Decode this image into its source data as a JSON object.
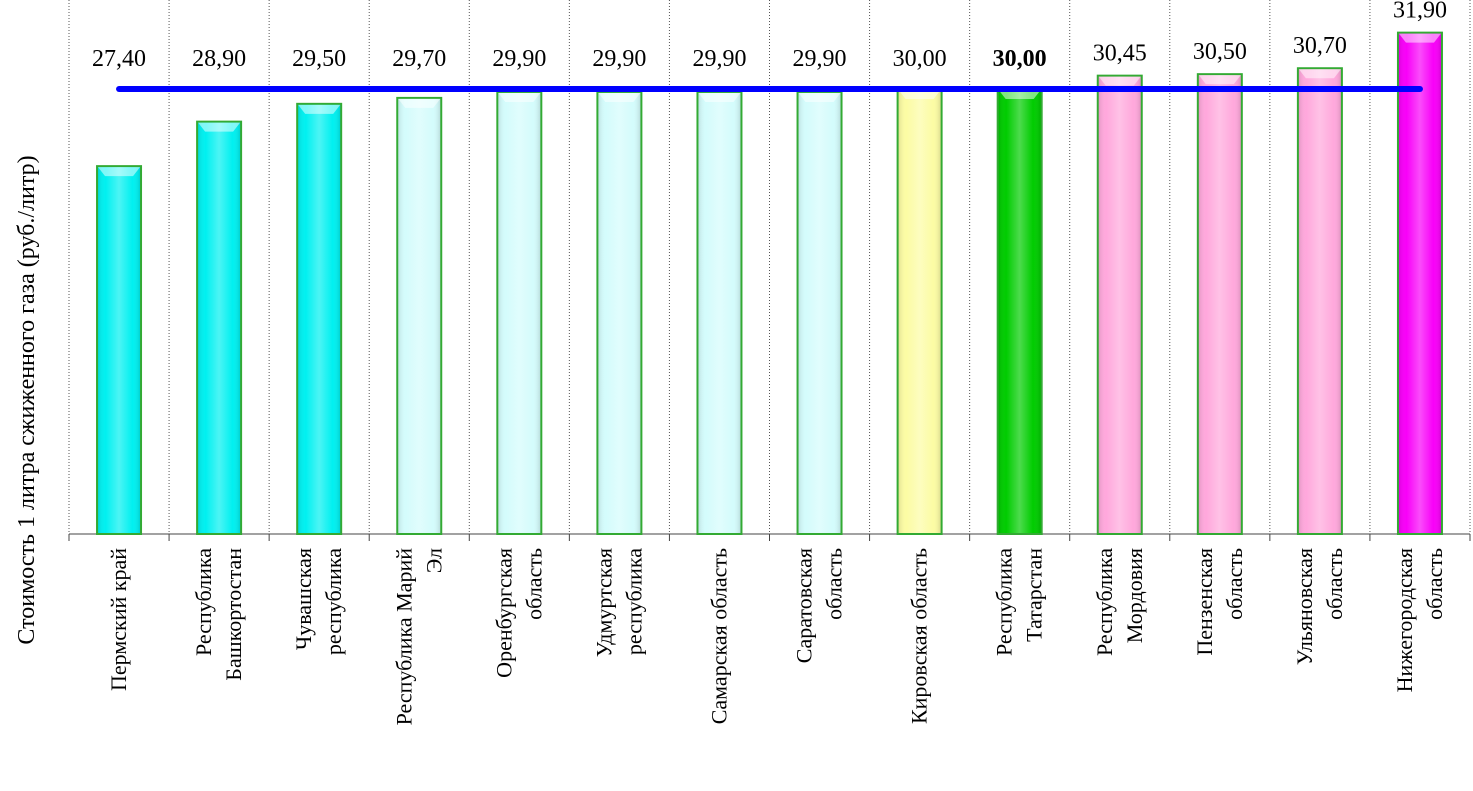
{
  "chart_data": {
    "type": "bar",
    "ylabel": "Стоимость 1 литра сжиженного газа  (руб./литр)",
    "categories": [
      [
        "Пермский край"
      ],
      [
        "Республика",
        "Башкортостан"
      ],
      [
        "Чувашская",
        "республика"
      ],
      [
        "Республика Марий",
        "Эл"
      ],
      [
        "Оренбургская",
        "область"
      ],
      [
        "Удмуртская",
        "республика"
      ],
      [
        "Самарская область"
      ],
      [
        "Саратовская",
        "область"
      ],
      [
        "Кировская область"
      ],
      [
        "Республика",
        "Татарстан"
      ],
      [
        "Республика",
        "Мордовия"
      ],
      [
        "Пензенская",
        "область"
      ],
      [
        "Ульяновская",
        "область"
      ],
      [
        "Нижегородская",
        "область"
      ]
    ],
    "values": [
      27.4,
      28.9,
      29.5,
      29.7,
      29.9,
      29.9,
      29.9,
      29.9,
      30.0,
      30.0,
      30.45,
      30.5,
      30.7,
      31.9
    ],
    "value_labels": [
      "27,40",
      "28,90",
      "29,50",
      "29,70",
      "29,90",
      "29,90",
      "29,90",
      "29,90",
      "30,00",
      "30,00",
      "30,45",
      "30,50",
      "30,70",
      "31,90"
    ],
    "highlight_index": 9,
    "bar_colors": [
      "#00f0f0",
      "#00f0f0",
      "#00f0f0",
      "#d4fcfc",
      "#d4fcfc",
      "#d4fcfc",
      "#d4fcfc",
      "#d4fcfc",
      "#fcfca4",
      "#00cc00",
      "#ffa8dc",
      "#ffa8dc",
      "#ffa8dc",
      "#f800f8"
    ],
    "bar_border_color": "#33aa33",
    "reference_line": {
      "value": 30.0,
      "color": "#0000ff"
    },
    "ylim": [
      15,
      33
    ],
    "grid": {
      "vertical": true,
      "style": "dotted"
    },
    "legend": "none"
  }
}
